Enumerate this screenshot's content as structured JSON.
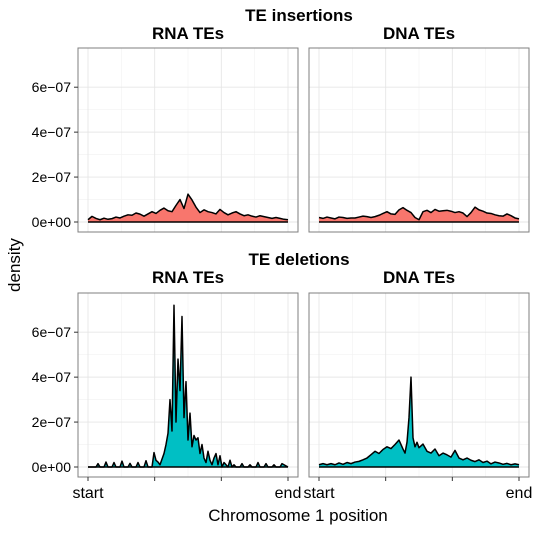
{
  "chart_data": {
    "type": "area",
    "xlabel": "Chromosome 1 position",
    "ylabel": "density",
    "x_tick_labels": [
      "start",
      "",
      "",
      "end"
    ],
    "x_range": [
      0,
      1
    ],
    "ylim": [
      0,
      7.3e-07
    ],
    "y_ticks": [
      0,
      2e-07,
      4e-07,
      6e-07
    ],
    "y_tick_labels": [
      "0e+00",
      "2e−07",
      "4e−07",
      "6e−07"
    ],
    "grid": true,
    "groups": [
      {
        "title": "TE insertions",
        "fill_color": "#F8766D",
        "panels": [
          {
            "title": "RNA TEs",
            "x": [
              0,
              0.02,
              0.04,
              0.06,
              0.08,
              0.1,
              0.12,
              0.14,
              0.16,
              0.18,
              0.2,
              0.22,
              0.24,
              0.26,
              0.28,
              0.3,
              0.32,
              0.34,
              0.36,
              0.38,
              0.4,
              0.42,
              0.44,
              0.46,
              0.48,
              0.5,
              0.52,
              0.54,
              0.56,
              0.58,
              0.6,
              0.62,
              0.64,
              0.66,
              0.68,
              0.7,
              0.72,
              0.74,
              0.76,
              0.78,
              0.8,
              0.82,
              0.84,
              0.86,
              0.88,
              0.9,
              0.92,
              0.94,
              0.96,
              0.98,
              1.0
            ],
            "y": [
              1e-08,
              2.5e-08,
              1.6e-08,
              1e-08,
              1.7e-08,
              1.2e-08,
              1.5e-08,
              2.2e-08,
              1.8e-08,
              2.6e-08,
              3.2e-08,
              3e-08,
              4e-08,
              3.5e-08,
              2.6e-08,
              3.6e-08,
              4.6e-08,
              3.8e-08,
              5.2e-08,
              6.2e-08,
              5e-08,
              4.6e-08,
              7.4e-08,
              1e-07,
              6e-08,
              1.24e-07,
              9.8e-08,
              6.6e-08,
              4.2e-08,
              5.4e-08,
              4.6e-08,
              4.2e-08,
              3.6e-08,
              5.6e-08,
              4.2e-08,
              3.2e-08,
              4e-08,
              4.6e-08,
              3.6e-08,
              2.8e-08,
              3.2e-08,
              2.6e-08,
              2.2e-08,
              2.8e-08,
              2.4e-08,
              2e-08,
              1.6e-08,
              2e-08,
              1.6e-08,
              1.2e-08,
              1e-08
            ]
          },
          {
            "title": "DNA TEs",
            "x": [
              0,
              0.02,
              0.04,
              0.06,
              0.08,
              0.1,
              0.12,
              0.14,
              0.16,
              0.18,
              0.2,
              0.22,
              0.24,
              0.26,
              0.28,
              0.3,
              0.32,
              0.34,
              0.36,
              0.38,
              0.4,
              0.42,
              0.44,
              0.46,
              0.48,
              0.5,
              0.52,
              0.54,
              0.56,
              0.58,
              0.6,
              0.62,
              0.64,
              0.66,
              0.68,
              0.7,
              0.72,
              0.74,
              0.76,
              0.78,
              0.8,
              0.82,
              0.84,
              0.86,
              0.88,
              0.9,
              0.92,
              0.94,
              0.96,
              0.98,
              1.0
            ],
            "y": [
              2e-08,
              1.6e-08,
              2.2e-08,
              1.8e-08,
              1.4e-08,
              2.2e-08,
              2e-08,
              1.6e-08,
              1.8e-08,
              1.8e-08,
              2.2e-08,
              2.6e-08,
              2.4e-08,
              2e-08,
              2.4e-08,
              3e-08,
              3.8e-08,
              4.6e-08,
              3.6e-08,
              3.4e-08,
              5.4e-08,
              6.4e-08,
              5.2e-08,
              4.2e-08,
              2e-08,
              1e-08,
              4.6e-08,
              5.2e-08,
              4.2e-08,
              5.6e-08,
              4.8e-08,
              5e-08,
              5.2e-08,
              4.8e-08,
              4.2e-08,
              4.6e-08,
              4e-08,
              2.4e-08,
              4.2e-08,
              6.6e-08,
              5.4e-08,
              4.8e-08,
              4e-08,
              3.8e-08,
              3.2e-08,
              2.8e-08,
              2.6e-08,
              3.6e-08,
              2.8e-08,
              1.8e-08,
              1.4e-08
            ]
          }
        ]
      },
      {
        "title": "TE deletions",
        "fill_color": "#00BFC4",
        "panels": [
          {
            "title": "RNA TEs",
            "x": [
              0,
              0.02,
              0.04,
              0.05,
              0.06,
              0.08,
              0.09,
              0.1,
              0.12,
              0.13,
              0.14,
              0.16,
              0.17,
              0.18,
              0.2,
              0.21,
              0.22,
              0.24,
              0.25,
              0.26,
              0.28,
              0.29,
              0.3,
              0.32,
              0.33,
              0.34,
              0.35,
              0.36,
              0.38,
              0.39,
              0.4,
              0.41,
              0.42,
              0.43,
              0.44,
              0.45,
              0.46,
              0.47,
              0.48,
              0.49,
              0.5,
              0.51,
              0.52,
              0.53,
              0.54,
              0.55,
              0.56,
              0.57,
              0.58,
              0.59,
              0.6,
              0.61,
              0.62,
              0.63,
              0.64,
              0.65,
              0.66,
              0.67,
              0.68,
              0.7,
              0.71,
              0.72,
              0.73,
              0.74,
              0.76,
              0.77,
              0.78,
              0.8,
              0.81,
              0.82,
              0.84,
              0.85,
              0.86,
              0.88,
              0.89,
              0.9,
              0.92,
              0.93,
              0.94,
              0.96,
              0.97,
              1.0
            ],
            "y": [
              0,
              0,
              0,
              1.5e-08,
              0,
              0,
              2.2e-08,
              0,
              0,
              2e-08,
              0,
              0,
              2.6e-08,
              0,
              0,
              1.6e-08,
              0,
              0,
              2e-08,
              0,
              0,
              2.8e-08,
              0,
              0,
              6.4e-08,
              3e-08,
              2.2e-08,
              1e-08,
              6e-08,
              1e-07,
              1.5e-07,
              3e-07,
              1.6e-07,
              7.2e-07,
              2e-07,
              4.8e-07,
              3.4e-07,
              6.7e-07,
              2.2e-07,
              3.8e-07,
              1.2e-07,
              2.4e-07,
              9e-08,
              1.4e-07,
              1.2e-07,
              1.3e-07,
              6e-08,
              1e-07,
              4e-08,
              2e-08,
              7e-08,
              3e-08,
              1e-08,
              4e-08,
              6e-08,
              1e-08,
              5e-08,
              0,
              2e-08,
              0,
              3e-08,
              0,
              1e-08,
              0,
              0,
              1.5e-08,
              0,
              0,
              1e-08,
              0,
              0,
              2e-08,
              0,
              0,
              1.5e-08,
              0,
              0,
              1e-08,
              0,
              0,
              1.5e-08,
              0
            ]
          },
          {
            "title": "DNA TEs",
            "x": [
              0,
              0.02,
              0.04,
              0.06,
              0.08,
              0.1,
              0.12,
              0.14,
              0.16,
              0.18,
              0.2,
              0.22,
              0.24,
              0.26,
              0.28,
              0.3,
              0.32,
              0.34,
              0.36,
              0.38,
              0.4,
              0.42,
              0.43,
              0.44,
              0.45,
              0.46,
              0.47,
              0.48,
              0.49,
              0.5,
              0.52,
              0.54,
              0.56,
              0.58,
              0.6,
              0.62,
              0.64,
              0.66,
              0.68,
              0.7,
              0.72,
              0.74,
              0.76,
              0.78,
              0.8,
              0.82,
              0.84,
              0.86,
              0.88,
              0.9,
              0.92,
              0.94,
              0.96,
              0.98,
              1.0
            ],
            "y": [
              1e-08,
              1.5e-08,
              1e-08,
              1.5e-08,
              1e-08,
              1.8e-08,
              1.2e-08,
              2e-08,
              1.5e-08,
              2.2e-08,
              2.5e-08,
              3.2e-08,
              4e-08,
              5.5e-08,
              7e-08,
              6e-08,
              7.8e-08,
              9e-08,
              8.2e-08,
              1e-07,
              1.2e-07,
              8e-08,
              6.2e-08,
              1.1e-07,
              2.2e-07,
              4e-07,
              1.3e-07,
              9e-08,
              1.1e-07,
              8.6e-08,
              1.02e-07,
              7e-08,
              6.2e-08,
              8e-08,
              5e-08,
              6.2e-08,
              5.4e-08,
              4.4e-08,
              7.4e-08,
              4e-08,
              3.2e-08,
              4e-08,
              3e-08,
              2.4e-08,
              3.2e-08,
              2e-08,
              2.6e-08,
              1.4e-08,
              2.2e-08,
              1.8e-08,
              1.2e-08,
              1.6e-08,
              1e-08,
              1.4e-08,
              1e-08
            ]
          }
        ]
      }
    ]
  }
}
